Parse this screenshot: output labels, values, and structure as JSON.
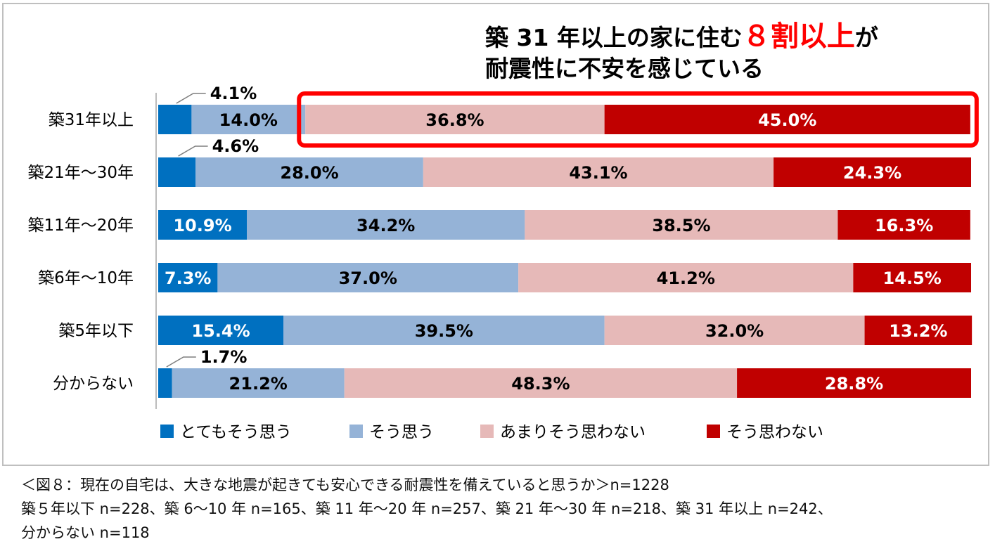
{
  "chart_data": {
    "type": "bar",
    "orientation": "horizontal",
    "stacked": true,
    "percent_stacked": true,
    "headline": {
      "line1_part1": "築 31 年以上の家に住む",
      "line1_highlight": "８割以上",
      "line1_part2": "が",
      "line2": "耐震性に不安を感じている",
      "highlight_color": "#ff0000"
    },
    "categories": [
      "築31年以上",
      "築21年～30年",
      "築11年～20年",
      "築6年～10年",
      "築5年以下",
      "分からない"
    ],
    "series": [
      {
        "name": "とてもそう思う",
        "color": "#0070c0",
        "label_color": "#ffffff",
        "values": [
          4.1,
          4.6,
          10.9,
          7.3,
          15.4,
          1.7
        ],
        "labels": [
          "4.1%",
          "4.6%",
          "10.9%",
          "7.3%",
          "15.4%",
          "1.7%"
        ]
      },
      {
        "name": "そう思う",
        "color": "#95b3d7",
        "label_color": "#000000",
        "values": [
          14.0,
          28.0,
          34.2,
          37.0,
          39.5,
          21.2
        ],
        "labels": [
          "14.0%",
          "28.0%",
          "34.2%",
          "37.0%",
          "39.5%",
          "21.2%"
        ]
      },
      {
        "name": "あまりそう思わない",
        "color": "#e6b9b8",
        "label_color": "#000000",
        "values": [
          36.8,
          43.1,
          38.5,
          41.2,
          32.0,
          48.3
        ],
        "labels": [
          "36.8%",
          "43.1%",
          "38.5%",
          "41.2%",
          "32.0%",
          "48.3%"
        ]
      },
      {
        "name": "そう思わない",
        "color": "#c00000",
        "label_color": "#ffffff",
        "values": [
          45.0,
          24.3,
          16.3,
          14.5,
          13.2,
          28.8
        ],
        "labels": [
          "45.0%",
          "24.3%",
          "16.3%",
          "14.5%",
          "13.2%",
          "28.8%"
        ]
      }
    ],
    "callout_labels": [
      {
        "category": "築31年以上",
        "series": "とてもそう思う",
        "text": "4.1%"
      },
      {
        "category": "築21年～30年",
        "series": "とてもそう思う",
        "text": "4.6%"
      },
      {
        "category": "分からない",
        "series": "とてもそう思う",
        "text": "1.7%"
      }
    ],
    "highlight": {
      "category": "築31年以上",
      "series": [
        "あまりそう思わない",
        "そう思わない"
      ],
      "color": "#ff0000"
    },
    "xlim": [
      0,
      100
    ],
    "legend_position": "bottom"
  },
  "caption": {
    "line1": "＜図８：現在の自宅は、大きな地震が起きても安心できる耐震性を備えていると思うか＞n=1228",
    "line2": "築５年以下 n=228、築 6～10 年 n=165、築 11 年～20 年 n=257、築 21 年～30 年 n=218、築 31 年以上 n=242、",
    "line3": "分からない n=118"
  }
}
